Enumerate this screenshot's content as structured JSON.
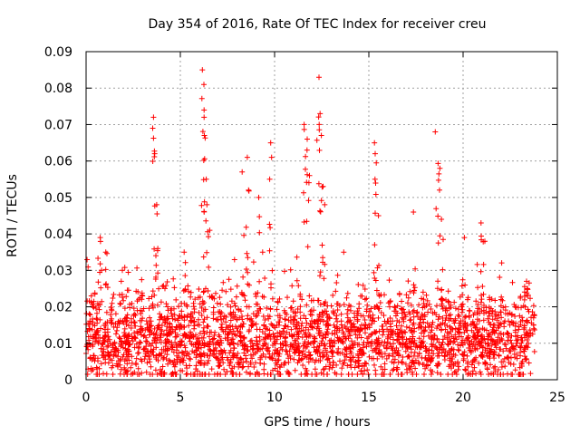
{
  "chart_data": {
    "type": "scatter",
    "title": "Day 354 of 2016, Rate Of TEC Index for receiver creu",
    "xlabel": "GPS time / hours",
    "ylabel": "ROTI / TECUs",
    "xlim": [
      0,
      25
    ],
    "ylim": [
      0,
      0.09
    ],
    "xticks": [
      "0",
      "5",
      "10",
      "15",
      "20",
      "25"
    ],
    "yticks": [
      "0",
      "0.01",
      "0.02",
      "0.03",
      "0.04",
      "0.05",
      "0.06",
      "0.07",
      "0.08",
      "0.09"
    ],
    "grid": true,
    "marker": "+",
    "color": "#ff0000",
    "x_span": [
      0,
      23.8
    ],
    "series": [
      {
        "notable_points": [
          {
            "x": 0.3,
            "y": 0.023
          },
          {
            "x": 0.7,
            "y": 0.039
          },
          {
            "x": 0.8,
            "y": 0.03
          },
          {
            "x": 1.1,
            "y": 0.035
          },
          {
            "x": 1.9,
            "y": 0.03
          },
          {
            "x": 3.6,
            "y": 0.072
          },
          {
            "x": 3.6,
            "y": 0.069
          },
          {
            "x": 3.7,
            "y": 0.062
          },
          {
            "x": 3.7,
            "y": 0.048
          },
          {
            "x": 3.8,
            "y": 0.036
          },
          {
            "x": 5.2,
            "y": 0.035
          },
          {
            "x": 6.2,
            "y": 0.085
          },
          {
            "x": 6.2,
            "y": 0.081
          },
          {
            "x": 6.3,
            "y": 0.074
          },
          {
            "x": 6.3,
            "y": 0.072
          },
          {
            "x": 6.3,
            "y": 0.067
          },
          {
            "x": 6.4,
            "y": 0.048
          },
          {
            "x": 6.5,
            "y": 0.041
          },
          {
            "x": 8.3,
            "y": 0.057
          },
          {
            "x": 8.5,
            "y": 0.061
          },
          {
            "x": 8.6,
            "y": 0.052
          },
          {
            "x": 9.2,
            "y": 0.05
          },
          {
            "x": 9.8,
            "y": 0.065
          },
          {
            "x": 9.8,
            "y": 0.061
          },
          {
            "x": 11.6,
            "y": 0.07
          },
          {
            "x": 11.7,
            "y": 0.066
          },
          {
            "x": 11.7,
            "y": 0.063
          },
          {
            "x": 11.8,
            "y": 0.056
          },
          {
            "x": 12.3,
            "y": 0.083
          },
          {
            "x": 12.4,
            "y": 0.073
          },
          {
            "x": 12.4,
            "y": 0.07
          },
          {
            "x": 12.5,
            "y": 0.067
          },
          {
            "x": 12.5,
            "y": 0.053
          },
          {
            "x": 12.6,
            "y": 0.048
          },
          {
            "x": 15.3,
            "y": 0.065
          },
          {
            "x": 15.4,
            "y": 0.062
          },
          {
            "x": 15.4,
            "y": 0.055
          },
          {
            "x": 15.5,
            "y": 0.045
          },
          {
            "x": 17.4,
            "y": 0.046
          },
          {
            "x": 18.6,
            "y": 0.068
          },
          {
            "x": 18.7,
            "y": 0.058
          },
          {
            "x": 18.7,
            "y": 0.052
          },
          {
            "x": 18.9,
            "y": 0.044
          },
          {
            "x": 20.0,
            "y": 0.039
          },
          {
            "x": 21.0,
            "y": 0.043
          },
          {
            "x": 21.1,
            "y": 0.038
          },
          {
            "x": 23.3,
            "y": 0.027
          },
          {
            "x": 23.4,
            "y": 0.025
          }
        ],
        "baseline_band": [
          0.003,
          0.022
        ],
        "typical_level": 0.011
      }
    ]
  }
}
